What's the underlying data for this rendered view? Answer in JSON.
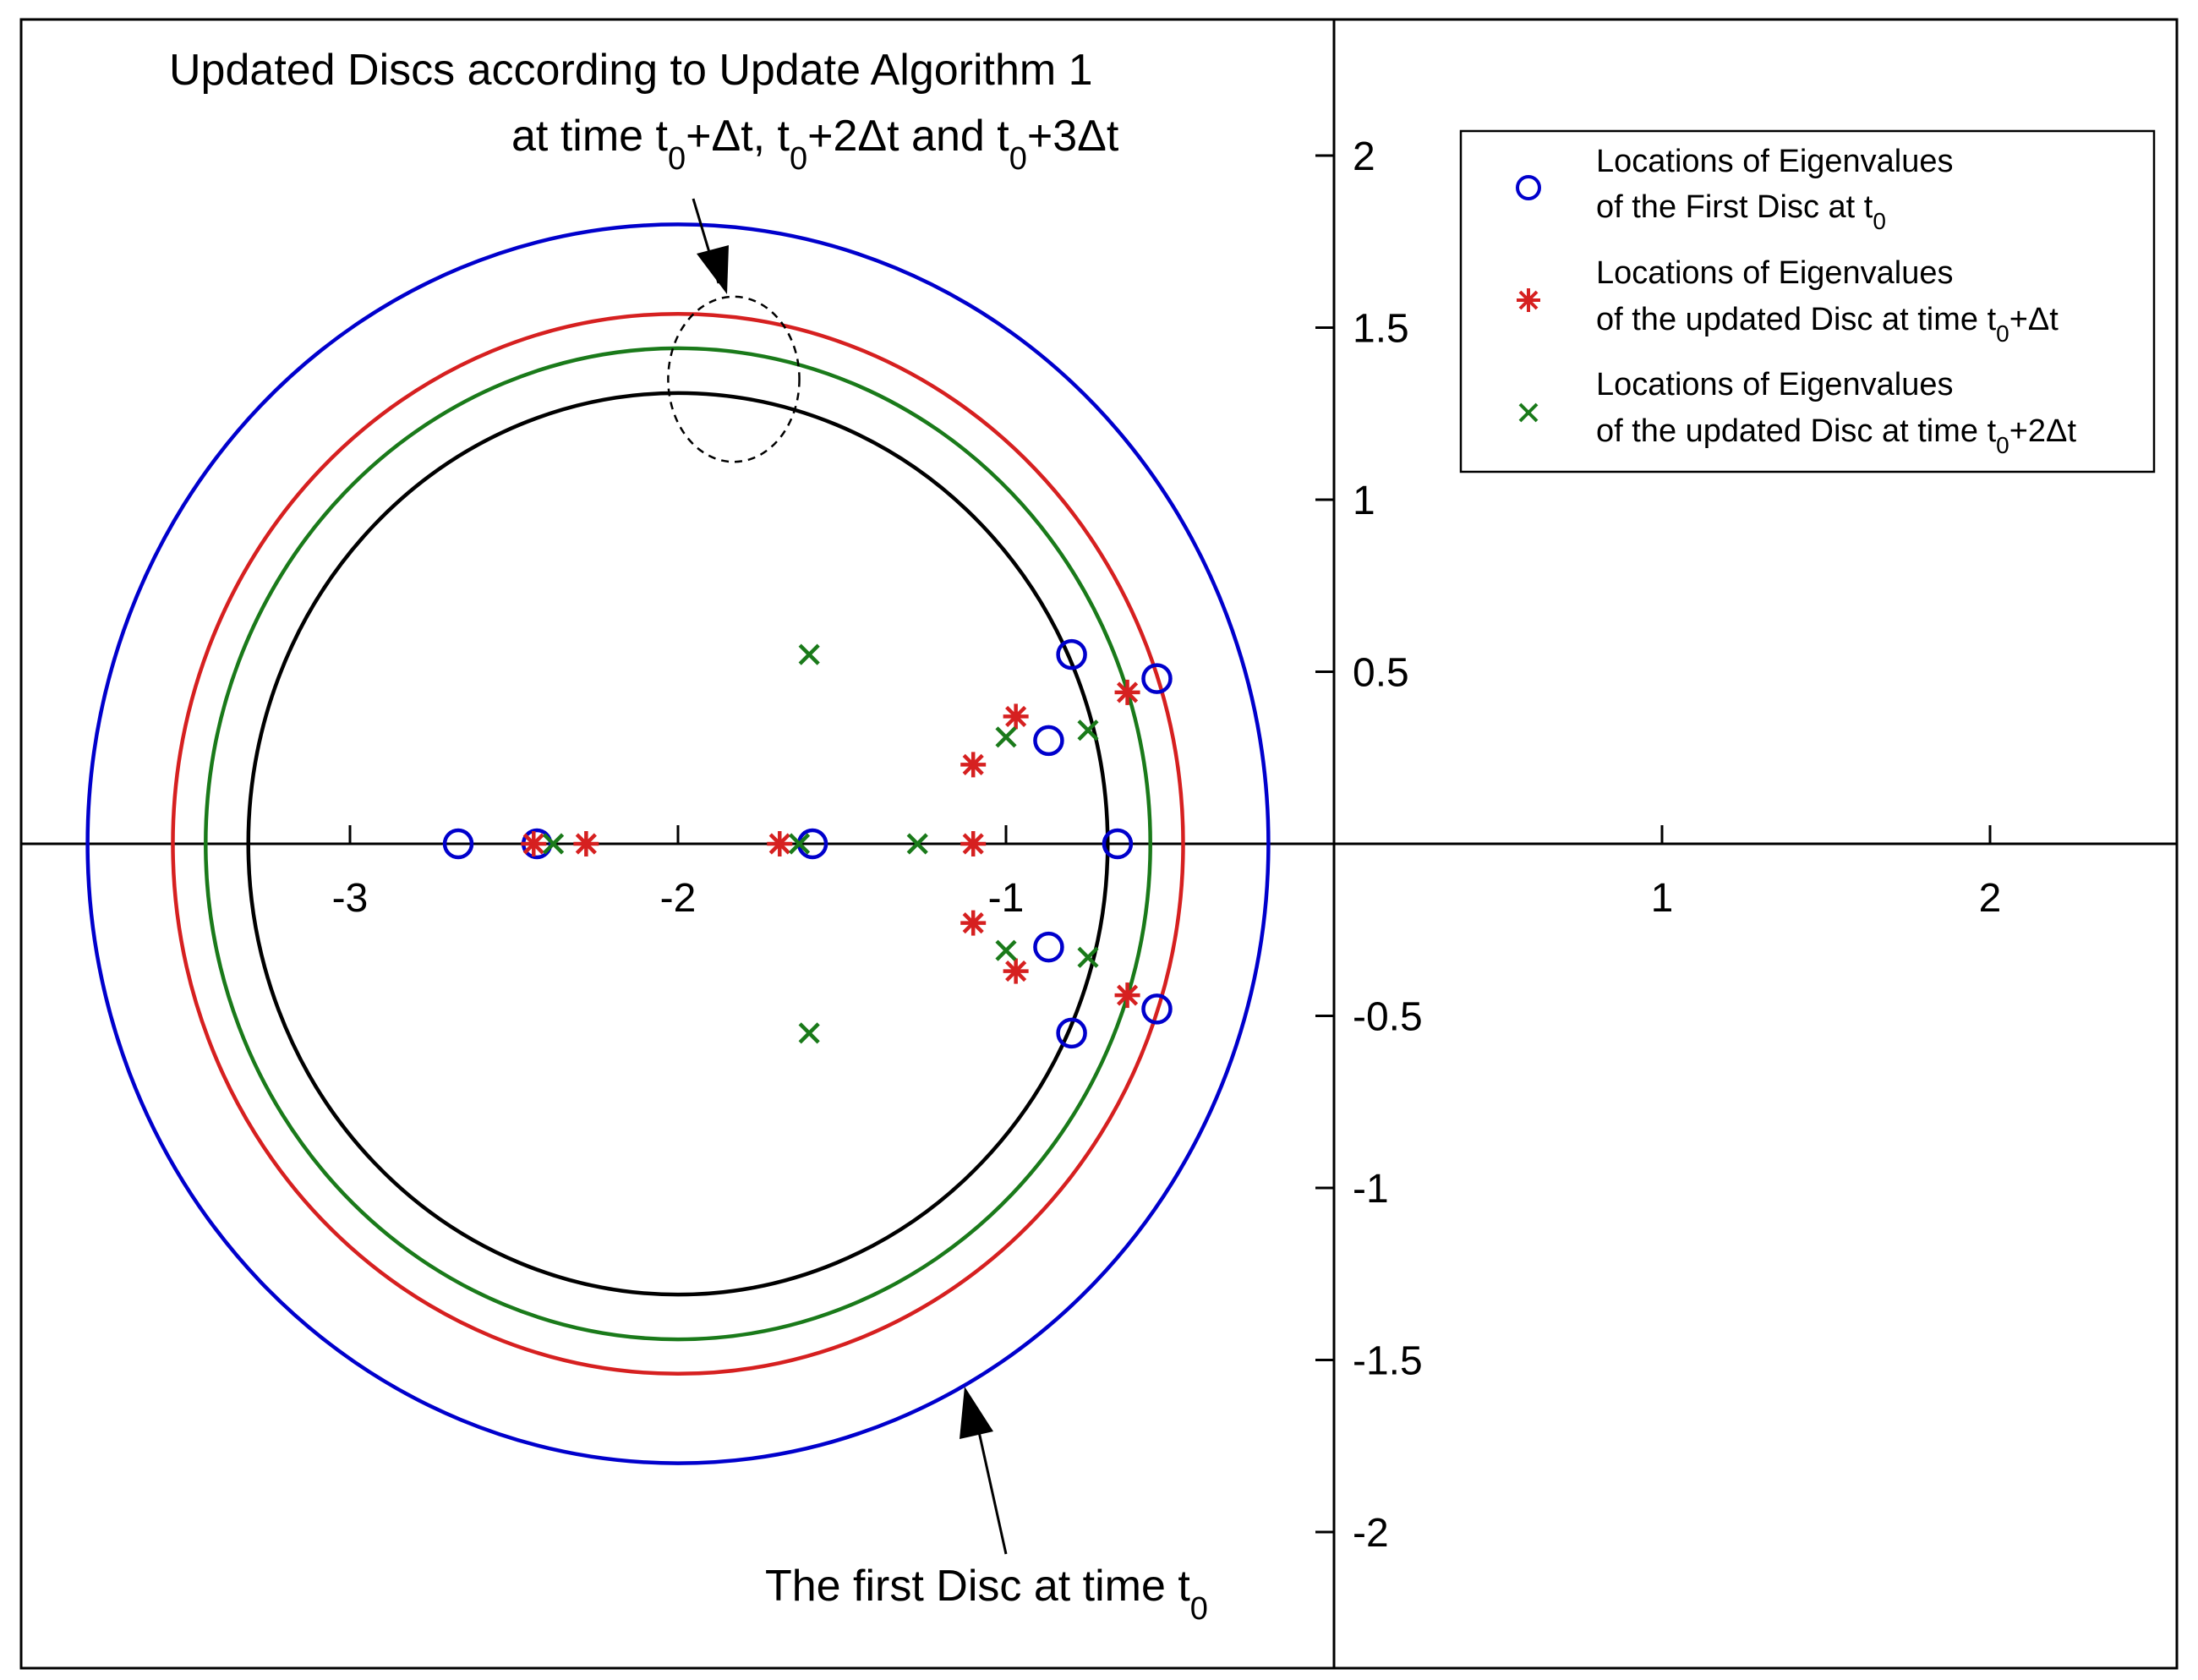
{
  "chart_data": {
    "type": "scatter",
    "xlim": [
      -3.95,
      2.6
    ],
    "ylim": [
      -2.4,
      2.4
    ],
    "xticks": [
      -3,
      -2,
      -1,
      1,
      2
    ],
    "yticks": [
      2,
      1.5,
      1,
      0.5,
      -0.5,
      -1,
      -1.5,
      -2
    ],
    "x_tick_labels": [
      "-3",
      "-2",
      "-1",
      "1",
      "2"
    ],
    "y_tick_labels": [
      "2",
      "1.5",
      "1",
      "0.5",
      "-0.5",
      "-1",
      "-1.5",
      "-2"
    ],
    "grid": false,
    "legend_placement": "top-right",
    "colors": {
      "blue": "#0000cc",
      "red": "#d62020",
      "green": "#1a7a1a",
      "black": "#000000"
    },
    "circles": [
      {
        "center": [
          -2,
          0
        ],
        "radius": 1.8,
        "color": "#0000cc"
      },
      {
        "center": [
          -2,
          0
        ],
        "radius": 1.54,
        "color": "#d62020"
      },
      {
        "center": [
          -2,
          0
        ],
        "radius": 1.44,
        "color": "#1a7a1a"
      },
      {
        "center": [
          -2,
          0
        ],
        "radius": 1.31,
        "color": "#000000"
      }
    ],
    "series": [
      {
        "name": "Locations of Eigenvalues of the First Disc at t0",
        "marker": "circle",
        "color": "#0000cc",
        "points": [
          [
            -2.67,
            0
          ],
          [
            -2.43,
            0
          ],
          [
            -1.59,
            0
          ],
          [
            -0.66,
            0
          ],
          [
            -0.8,
            0.55
          ],
          [
            -0.8,
            -0.55
          ],
          [
            -0.54,
            0.48
          ],
          [
            -0.54,
            -0.48
          ],
          [
            -0.87,
            0.3
          ],
          [
            -0.87,
            -0.3
          ]
        ]
      },
      {
        "name": "Locations of Eigenvalues of the updated Disc at time t0+Δt",
        "marker": "asterisk",
        "color": "#d62020",
        "points": [
          [
            -2.44,
            0
          ],
          [
            -2.28,
            0
          ],
          [
            -1.69,
            0
          ],
          [
            -1.1,
            0
          ],
          [
            -1.1,
            0.23
          ],
          [
            -1.1,
            -0.23
          ],
          [
            -0.97,
            0.37
          ],
          [
            -0.97,
            -0.37
          ],
          [
            -0.63,
            0.44
          ],
          [
            -0.63,
            -0.44
          ]
        ]
      },
      {
        "name": "Locations of Eigenvalues of the updated Disc at time t0+2Δt",
        "marker": "x",
        "color": "#1a7a1a",
        "points": [
          [
            -2.38,
            0
          ],
          [
            -1.63,
            0
          ],
          [
            -1.27,
            0
          ],
          [
            -1.6,
            0.55
          ],
          [
            -1.6,
            -0.55
          ],
          [
            -1.0,
            0.31
          ],
          [
            -1.0,
            -0.31
          ],
          [
            -0.75,
            0.33
          ],
          [
            -0.75,
            -0.33
          ]
        ]
      }
    ],
    "dashed_ellipse": {
      "center": [
        -1.83,
        1.35
      ],
      "rx": 0.2,
      "ry": 0.24
    },
    "annotations": [
      {
        "lines": [
          "Updated Discs according to Update Algorithm 1",
          "at time t0+Δt, t0+2Δt and t0+3Δt"
        ],
        "arrow_to": [
          -1.83,
          1.6
        ]
      },
      {
        "lines": [
          "The first Disc at time t0"
        ],
        "arrow_to": [
          -1.32,
          -1.7
        ]
      }
    ]
  },
  "annotation_top": {
    "line1": "Updated Discs according to Update Algorithm 1",
    "line2_parts": [
      "at time t",
      "0",
      "+Δt, t",
      "0",
      "+2Δt and t",
      "0",
      "+3Δt"
    ]
  },
  "annotation_bottom": {
    "parts": [
      "The first Disc at time t",
      "0"
    ]
  },
  "legend": {
    "entries": [
      {
        "line1": "Locations of Eigenvalues",
        "line2": "of the First Disc at t",
        "sub": "0",
        "tail": ""
      },
      {
        "line1": "Locations of Eigenvalues",
        "line2": "of the updated Disc at time t",
        "sub": "0",
        "tail": "+Δt"
      },
      {
        "line1": "Locations of Eigenvalues",
        "line2": "of the updated Disc at time t",
        "sub": "0",
        "tail": "+2Δt"
      }
    ]
  }
}
